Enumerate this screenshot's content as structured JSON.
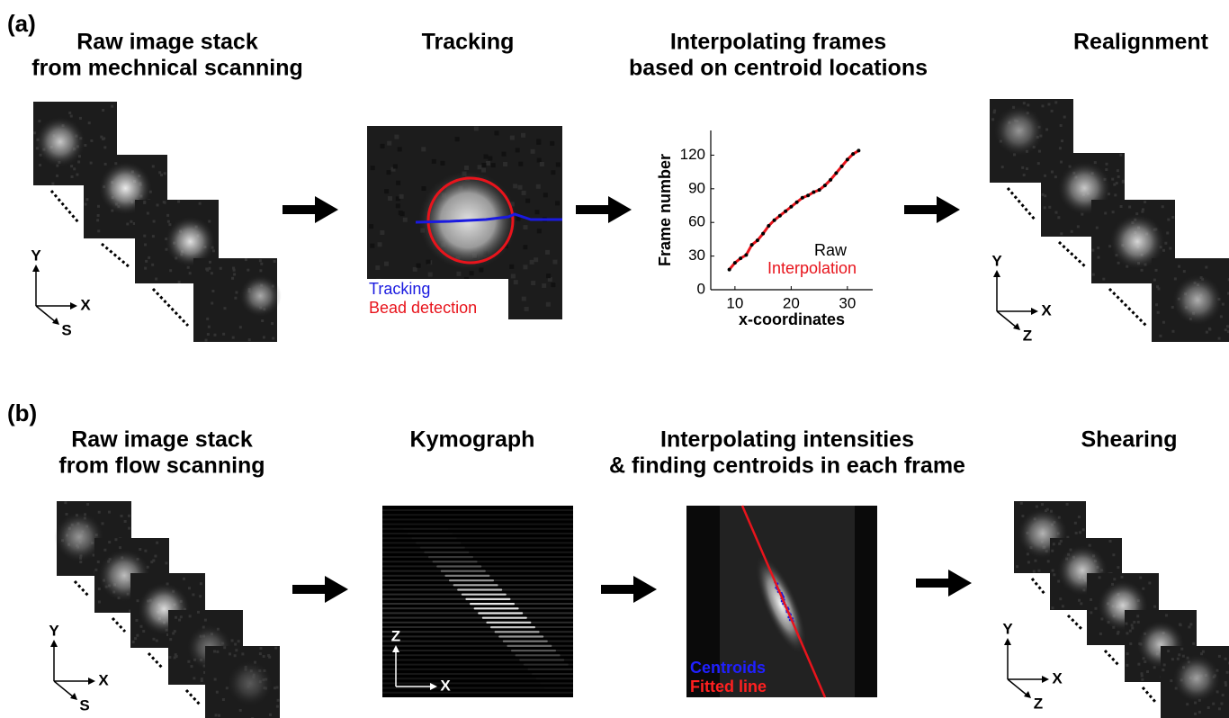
{
  "panels": [
    {
      "label": "(a)",
      "steps": [
        {
          "title": [
            "Raw image stack",
            "from mechnical scanning"
          ],
          "axes": [
            "Y",
            "X",
            "S"
          ]
        },
        {
          "title": [
            "Tracking"
          ],
          "legend": [
            "Tracking",
            "Bead detection"
          ]
        },
        {
          "title": [
            "Interpolating frames",
            "based on centroid locations"
          ]
        },
        {
          "title": [
            "Realignment"
          ],
          "axes": [
            "Y",
            "X",
            "Z"
          ]
        }
      ]
    },
    {
      "label": "(b)",
      "steps": [
        {
          "title": [
            "Raw image stack",
            "from flow scanning"
          ],
          "axes": [
            "Y",
            "X",
            "S"
          ]
        },
        {
          "title": [
            "Kymograph"
          ],
          "axes": [
            "Z",
            "X"
          ]
        },
        {
          "title": [
            "Interpolating intensities",
            "& finding centroids in each frame"
          ],
          "legend": [
            "Centroids",
            "Fitted line"
          ]
        },
        {
          "title": [
            "Shearing"
          ],
          "axes": [
            "Y",
            "X",
            "Z"
          ]
        }
      ]
    }
  ],
  "chart_data": {
    "type": "scatter",
    "x_label": "x-coordinates",
    "y_label": "Frame number",
    "xlim": [
      5.7,
      34.5
    ],
    "ylim": [
      0,
      142
    ],
    "xticks": [
      10,
      20,
      30
    ],
    "yticks": [
      0,
      30,
      60,
      90,
      120
    ],
    "series": [
      {
        "name": "Raw",
        "color": "#000000",
        "x": [
          9,
          10,
          11,
          12,
          13,
          14,
          15,
          16,
          17,
          18,
          19,
          20,
          21,
          22,
          23,
          24,
          25,
          26,
          27,
          28,
          29,
          30,
          31,
          32
        ],
        "values": [
          18,
          24,
          28,
          31,
          40,
          44,
          50,
          57,
          62,
          66,
          70,
          74,
          78,
          82,
          84,
          87,
          89,
          93,
          98,
          104,
          110,
          116,
          121,
          124
        ]
      },
      {
        "name": "Interpolation",
        "color": "#e8141c",
        "x": [
          9,
          10,
          11,
          12,
          13,
          14,
          15,
          16,
          17,
          18,
          19,
          20,
          21,
          22,
          23,
          24,
          25,
          26,
          27,
          28,
          29,
          30,
          31,
          32
        ],
        "values": [
          18,
          24,
          28,
          31,
          40,
          44,
          50,
          57,
          62,
          66,
          70,
          74,
          78,
          82,
          84,
          87,
          89,
          93,
          98,
          104,
          110,
          116,
          121,
          124
        ]
      }
    ]
  }
}
